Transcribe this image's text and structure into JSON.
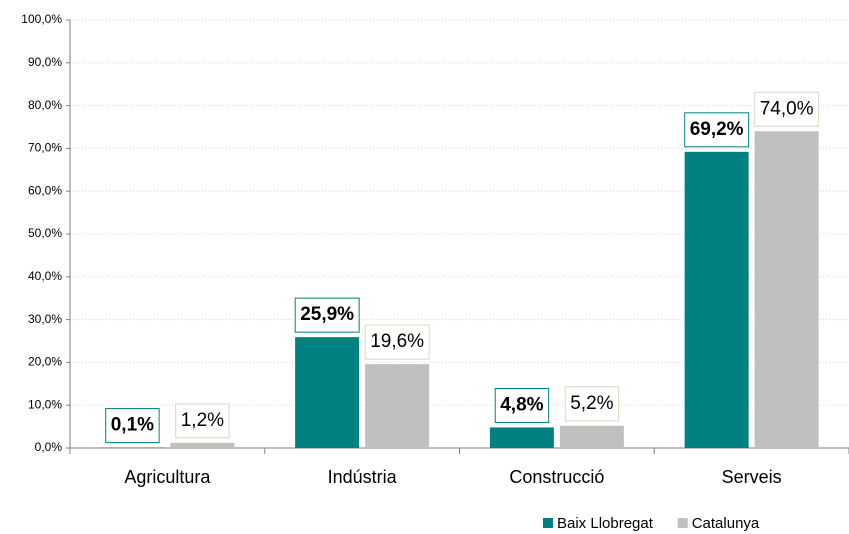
{
  "chart_data": {
    "type": "bar",
    "categories": [
      "Agricultura",
      "Indústria",
      "Construcció",
      "Serveis"
    ],
    "series": [
      {
        "name": "Baix Llobregat",
        "color": "#008080",
        "values": [
          0.1,
          25.9,
          4.8,
          69.2
        ],
        "value_labels": [
          "0,1%",
          "25,9%",
          "4,8%",
          "69,2%"
        ]
      },
      {
        "name": "Catalunya",
        "color": "#c0c0c0",
        "values": [
          1.2,
          19.6,
          5.2,
          74.0
        ],
        "value_labels": [
          "1,2%",
          "19,6%",
          "5,2%",
          "74,0%"
        ]
      }
    ],
    "ylim": [
      0,
      100
    ],
    "yticks": [
      {
        "value": 0,
        "label": "0,0%"
      },
      {
        "value": 10,
        "label": "10,0%"
      },
      {
        "value": 20,
        "label": "20,0%"
      },
      {
        "value": 30,
        "label": "30,0%"
      },
      {
        "value": 40,
        "label": "40,0%"
      },
      {
        "value": 50,
        "label": "50,0%"
      },
      {
        "value": 60,
        "label": "60,0%"
      },
      {
        "value": 70,
        "label": "70,0%"
      },
      {
        "value": 80,
        "label": "80,0%"
      },
      {
        "value": 90,
        "label": "90,0%"
      },
      {
        "value": 100,
        "label": "100,0%"
      }
    ],
    "grid": true
  }
}
